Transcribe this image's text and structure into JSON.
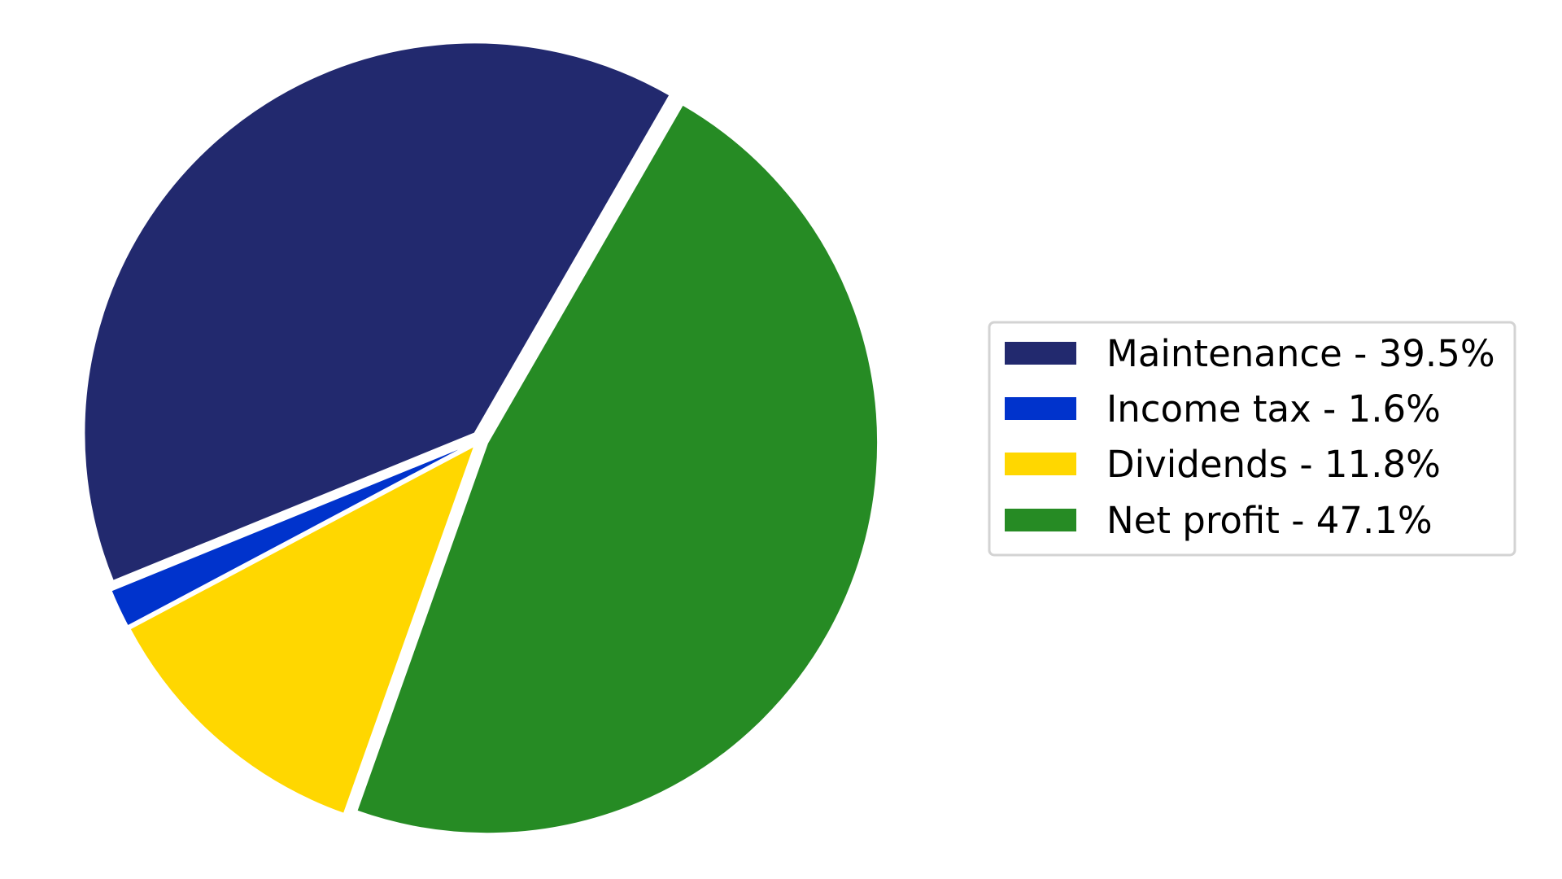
{
  "chart_data": {
    "type": "pie",
    "title": "",
    "slices": [
      {
        "label": "Maintenance - 39.5%",
        "value": 39.5,
        "color": "#22296e"
      },
      {
        "label": "Income tax - 1.6%",
        "value": 1.6,
        "color": "#0033cc"
      },
      {
        "label": "Dividends - 11.8%",
        "value": 11.8,
        "color": "#ffd700"
      },
      {
        "label": "Net profit - 47.1%",
        "value": 47.1,
        "color": "#268b24"
      }
    ],
    "start_angle_deg": 60,
    "direction": "counterclockwise",
    "exploded": true,
    "legend_position": "right"
  }
}
